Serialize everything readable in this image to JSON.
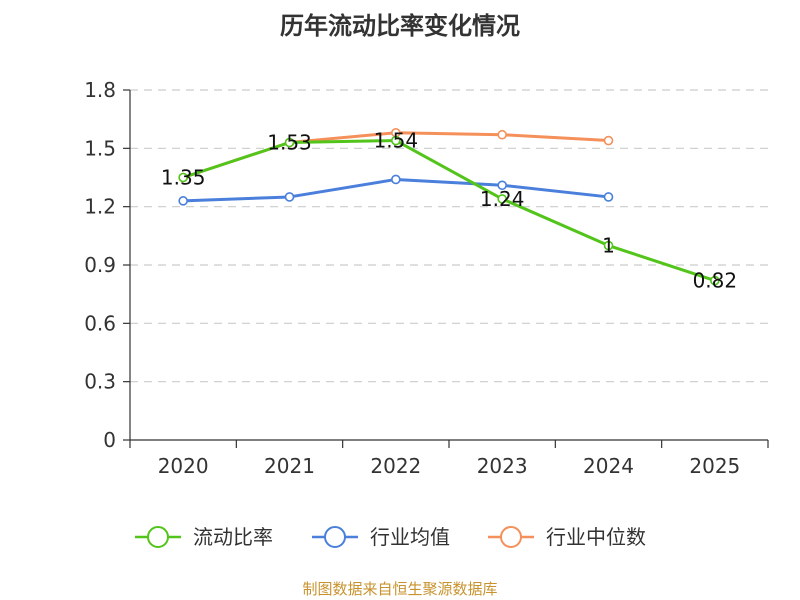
{
  "chart_data": {
    "type": "line",
    "title": "历年流动比率变化情况",
    "categories": [
      "2020",
      "2021",
      "2022",
      "2023",
      "2024",
      "2025"
    ],
    "y_ticks": [
      "0",
      "0.3",
      "0.6",
      "0.9",
      "1.2",
      "1.5",
      "1.8"
    ],
    "ylim": [
      0,
      1.8
    ],
    "grid": true,
    "legend_position": "bottom",
    "series": [
      {
        "name": "流动比率",
        "color": "#52c41a",
        "values": [
          1.35,
          1.53,
          1.54,
          1.24,
          1.0,
          0.82
        ],
        "labels": [
          "1.35",
          "1.53",
          "1.54",
          "1.24",
          "1",
          "0.82"
        ]
      },
      {
        "name": "行业均值",
        "color": "#4a7fdc",
        "values": [
          1.23,
          1.25,
          1.34,
          1.31,
          1.25,
          null
        ],
        "labels": []
      },
      {
        "name": "行业中位数",
        "color": "#f5905a",
        "values": [
          1.35,
          1.53,
          1.58,
          1.57,
          1.54,
          null
        ],
        "labels": []
      }
    ],
    "source": "制图数据来自恒生聚源数据库"
  }
}
